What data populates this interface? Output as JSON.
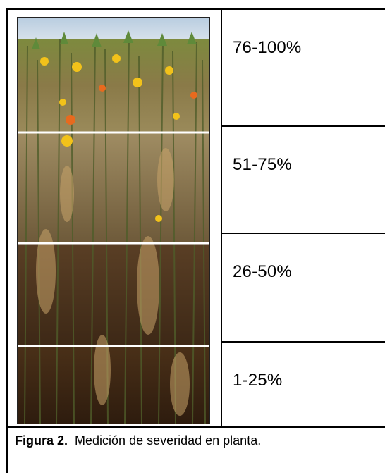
{
  "figure": {
    "severity_levels": [
      {
        "label": "76-100%"
      },
      {
        "label": "51-75%"
      },
      {
        "label": "26-50%"
      },
      {
        "label": "1-25%"
      }
    ],
    "caption_number": "Figura 2.",
    "caption_text": "Medición de severidad en planta."
  }
}
